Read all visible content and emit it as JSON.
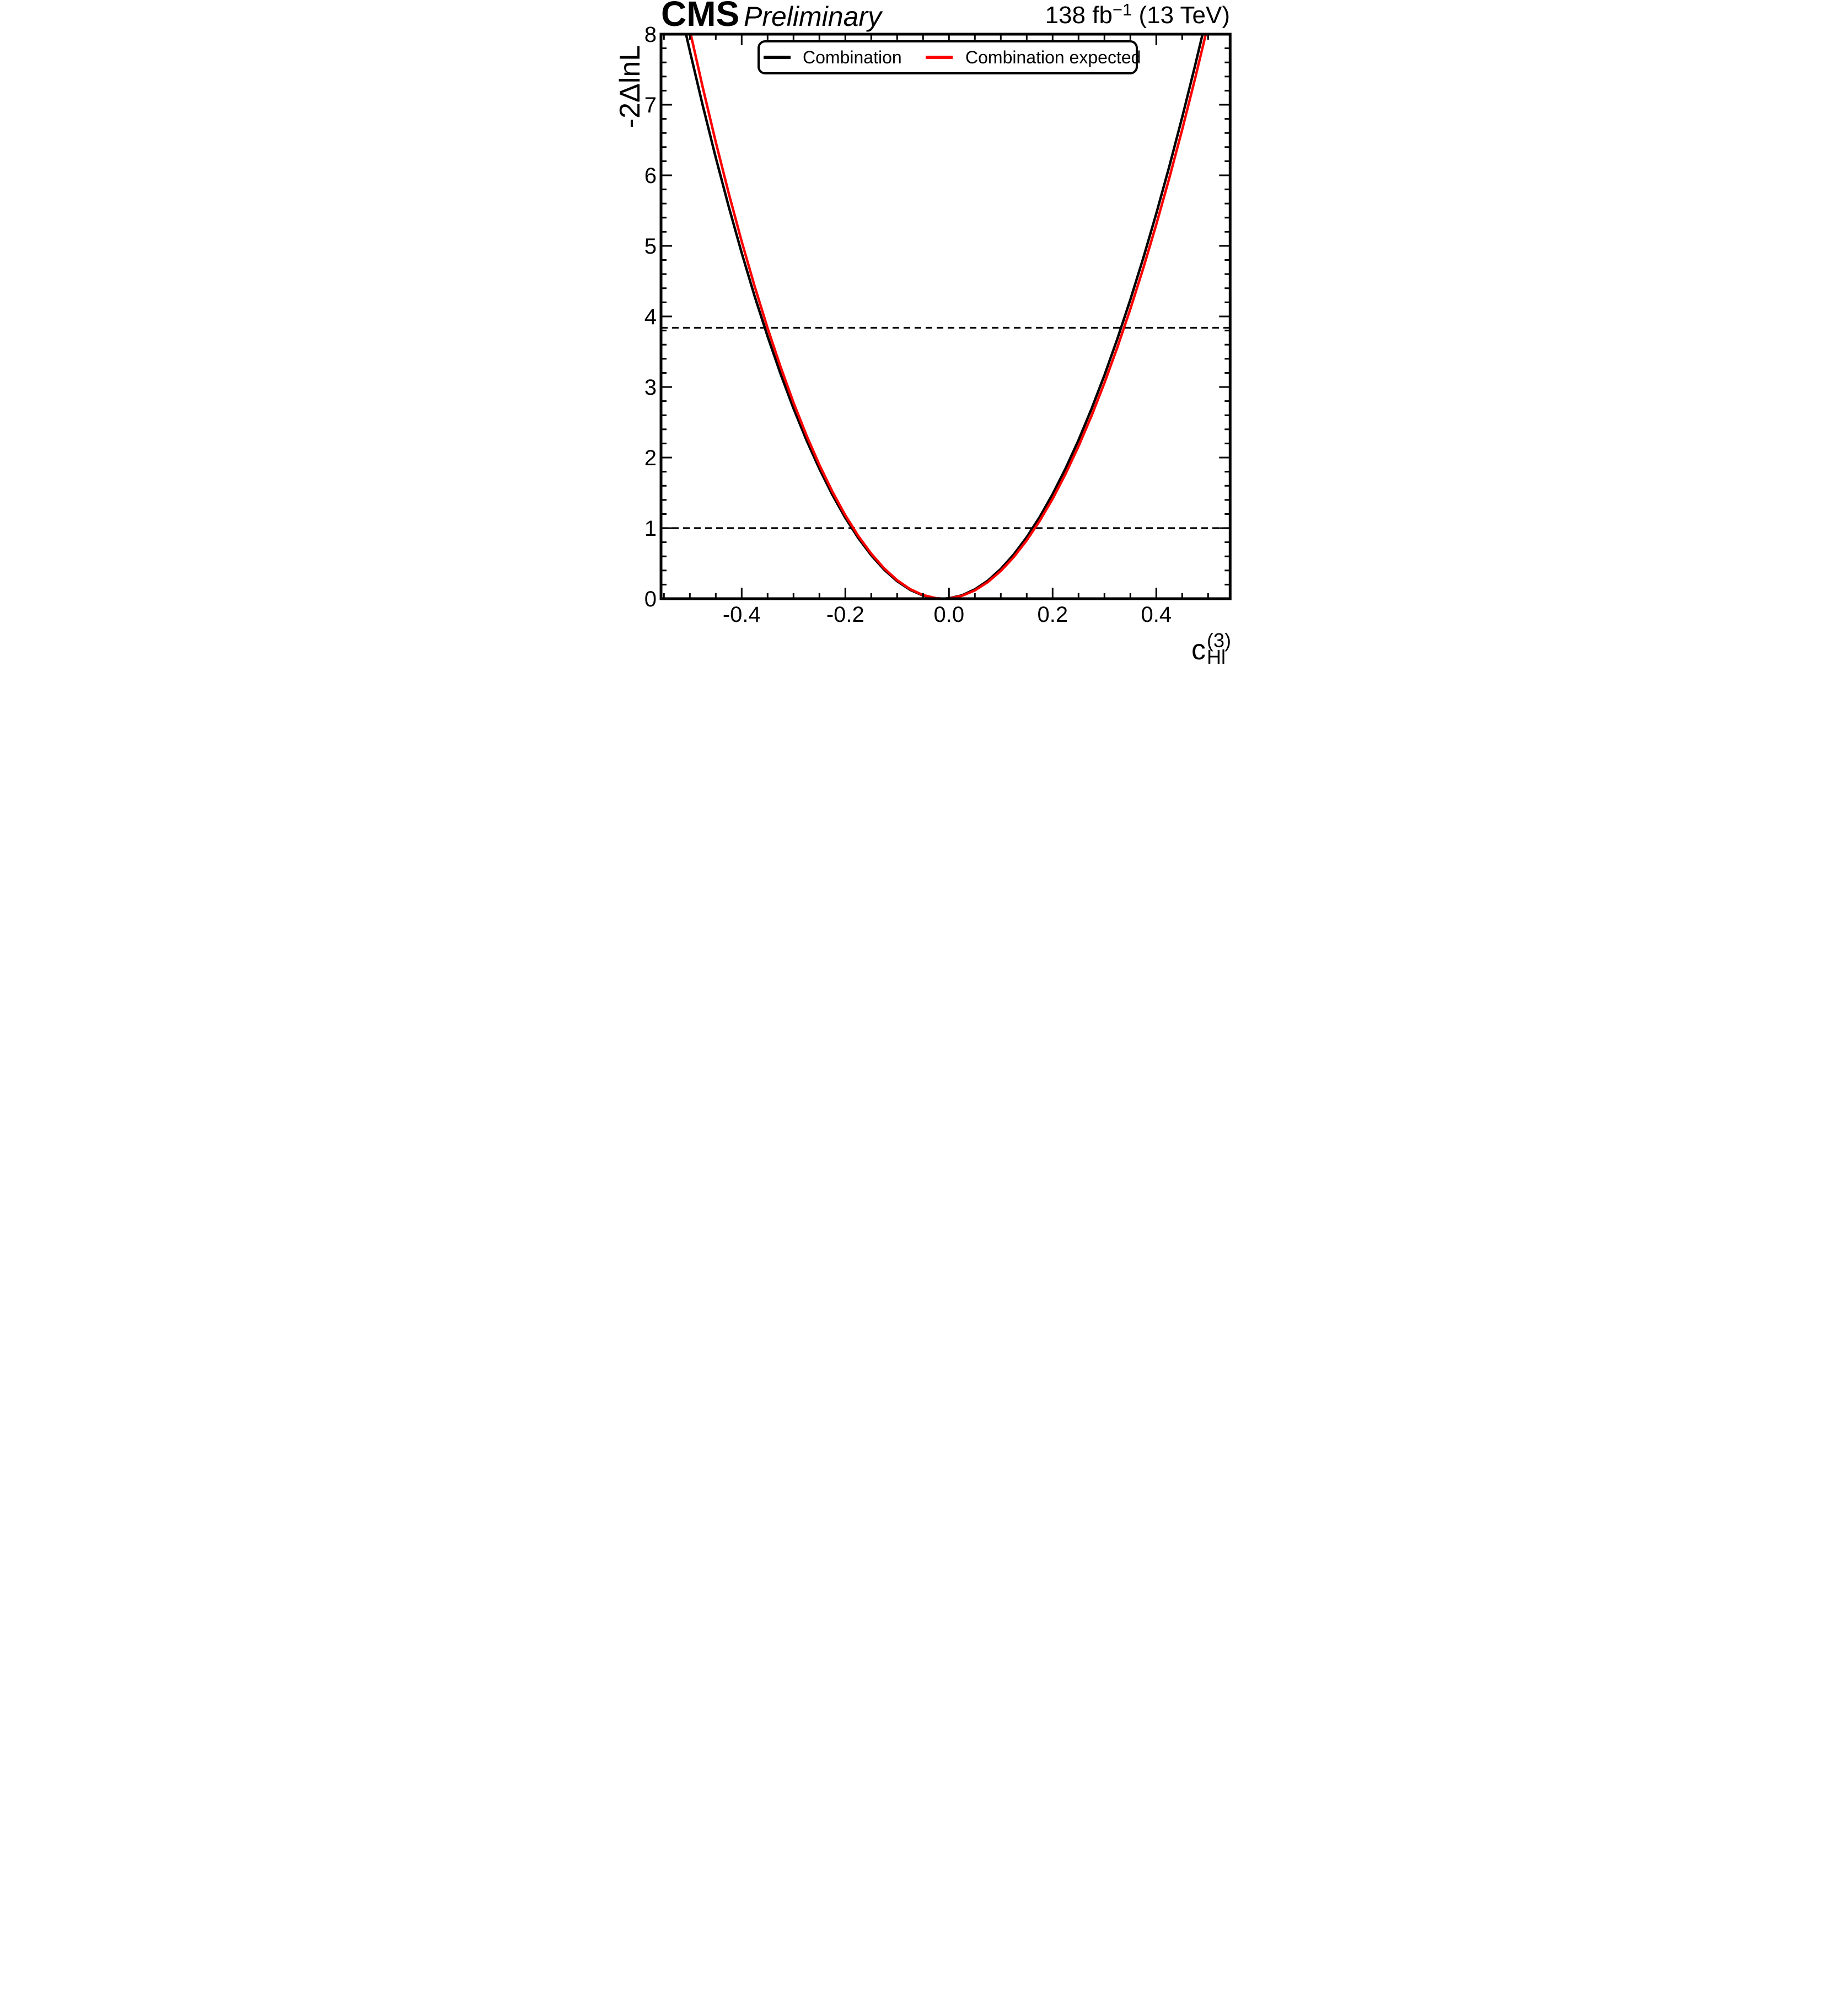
{
  "header": {
    "experiment": "CMS",
    "status": "Preliminary",
    "lumi": "138 fb",
    "lumi_sup": "−1",
    "energy": " (13 TeV)"
  },
  "axes": {
    "y_title": "-2ΔlnL",
    "x_title_base": "c",
    "x_title_sup": "(3)",
    "x_title_sub": "Hl"
  },
  "legend": {
    "entries": [
      {
        "label": "Combination",
        "color": "#000000"
      },
      {
        "label": "Combination expected",
        "color": "#ff0000"
      }
    ]
  },
  "chart_data": {
    "type": "line",
    "title": "CMS Preliminary likelihood scan",
    "xlabel": "cHl(3)",
    "ylabel": "-2ΔlnL",
    "x_axis": {
      "min": -0.5557,
      "max": 0.5426,
      "minor_step": 0.05,
      "ticks": [
        {
          "v": -0.4,
          "label": "-0.4"
        },
        {
          "v": -0.2,
          "label": "-0.2"
        },
        {
          "v": 0.0,
          "label": "0.0"
        },
        {
          "v": 0.2,
          "label": "0.2"
        },
        {
          "v": 0.4,
          "label": "0.4"
        }
      ]
    },
    "y_axis": {
      "min": 0,
      "max": 8,
      "minor_step": 0.2,
      "ticks": [
        {
          "v": 0,
          "label": "0"
        },
        {
          "v": 1,
          "label": "1"
        },
        {
          "v": 2,
          "label": "2"
        },
        {
          "v": 3,
          "label": "3"
        },
        {
          "v": 4,
          "label": "4"
        },
        {
          "v": 5,
          "label": "5"
        },
        {
          "v": 6,
          "label": "6"
        },
        {
          "v": 7,
          "label": "7"
        },
        {
          "v": 8,
          "label": "8"
        }
      ]
    },
    "grid": false,
    "legend_position": "top-center",
    "reference_lines": [
      {
        "y": 1.0,
        "style": "dashed",
        "color": "#000000"
      },
      {
        "y": 3.84,
        "style": "dashed",
        "color": "#000000"
      }
    ],
    "series": [
      {
        "name": "Combination",
        "color": "#000000",
        "minimum_x": -0.013,
        "points": [
          [
            -0.515,
            8.243
          ],
          [
            -0.5,
            7.762
          ],
          [
            -0.475,
            6.985
          ],
          [
            -0.45,
            6.251
          ],
          [
            -0.425,
            5.556
          ],
          [
            -0.4,
            4.901
          ],
          [
            -0.375,
            4.287
          ],
          [
            -0.35,
            3.717
          ],
          [
            -0.325,
            3.186
          ],
          [
            -0.3,
            2.696
          ],
          [
            -0.275,
            2.247
          ],
          [
            -0.25,
            1.839
          ],
          [
            -0.225,
            1.471
          ],
          [
            -0.2,
            1.145
          ],
          [
            -0.175,
            0.859
          ],
          [
            -0.15,
            0.615
          ],
          [
            -0.125,
            0.411
          ],
          [
            -0.1,
            0.248
          ],
          [
            -0.075,
            0.126
          ],
          [
            -0.05,
            0.045
          ],
          [
            -0.025,
            0.005
          ],
          [
            -0.013,
            0.0
          ],
          [
            0.0,
            0.006
          ],
          [
            0.025,
            0.048
          ],
          [
            0.05,
            0.132
          ],
          [
            0.075,
            0.256
          ],
          [
            0.1,
            0.422
          ],
          [
            0.125,
            0.627
          ],
          [
            0.15,
            0.873
          ],
          [
            0.175,
            1.158
          ],
          [
            0.2,
            1.482
          ],
          [
            0.225,
            1.846
          ],
          [
            0.25,
            2.248
          ],
          [
            0.275,
            2.689
          ],
          [
            0.3,
            3.167
          ],
          [
            0.325,
            3.684
          ],
          [
            0.35,
            4.238
          ],
          [
            0.375,
            4.829
          ],
          [
            0.4,
            5.457
          ],
          [
            0.425,
            6.121
          ],
          [
            0.45,
            6.822
          ],
          [
            0.475,
            7.558
          ],
          [
            0.5,
            8.329
          ]
        ]
      },
      {
        "name": "Combination expected",
        "color": "#ff0000",
        "minimum_x": -0.0105,
        "points": [
          [
            -0.51,
            8.393
          ],
          [
            -0.5,
            8.055
          ],
          [
            -0.475,
            7.242
          ],
          [
            -0.45,
            6.472
          ],
          [
            -0.425,
            5.746
          ],
          [
            -0.4,
            5.063
          ],
          [
            -0.375,
            4.427
          ],
          [
            -0.35,
            3.834
          ],
          [
            -0.325,
            3.287
          ],
          [
            -0.3,
            2.779
          ],
          [
            -0.275,
            2.316
          ],
          [
            -0.25,
            1.896
          ],
          [
            -0.225,
            1.518
          ],
          [
            -0.2,
            1.182
          ],
          [
            -0.175,
            0.889
          ],
          [
            -0.15,
            0.638
          ],
          [
            -0.125,
            0.429
          ],
          [
            -0.1,
            0.262
          ],
          [
            -0.075,
            0.136
          ],
          [
            -0.05,
            0.051
          ],
          [
            -0.025,
            0.007
          ],
          [
            -0.0105,
            0.0
          ],
          [
            0.0,
            0.004
          ],
          [
            0.025,
            0.041
          ],
          [
            0.05,
            0.118
          ],
          [
            0.075,
            0.236
          ],
          [
            0.1,
            0.393
          ],
          [
            0.125,
            0.59
          ],
          [
            0.15,
            0.827
          ],
          [
            0.175,
            1.102
          ],
          [
            0.2,
            1.416
          ],
          [
            0.225,
            1.769
          ],
          [
            0.25,
            2.161
          ],
          [
            0.275,
            2.59
          ],
          [
            0.3,
            3.058
          ],
          [
            0.325,
            3.563
          ],
          [
            0.35,
            4.106
          ],
          [
            0.375,
            4.686
          ],
          [
            0.4,
            5.303
          ],
          [
            0.425,
            5.957
          ],
          [
            0.45,
            6.647
          ],
          [
            0.475,
            7.374
          ],
          [
            0.5,
            8.137
          ],
          [
            0.51,
            8.45
          ]
        ]
      }
    ]
  }
}
